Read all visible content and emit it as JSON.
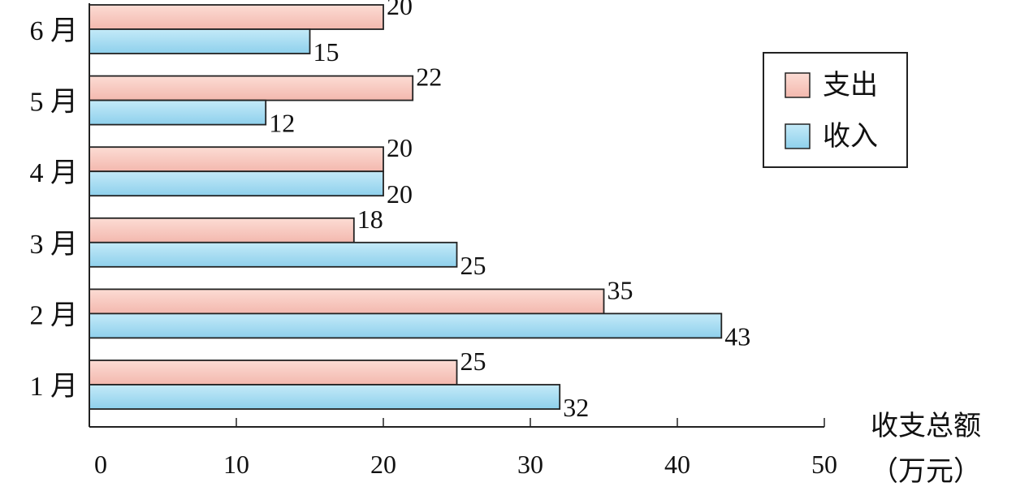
{
  "chart_data": {
    "type": "bar",
    "orientation": "horizontal",
    "categories": [
      "1 月",
      "2 月",
      "3 月",
      "4 月",
      "5 月",
      "6 月"
    ],
    "series": [
      {
        "name": "支出",
        "values": [
          25,
          35,
          18,
          20,
          22,
          20
        ],
        "color": "#F8C8C0"
      },
      {
        "name": "收入",
        "values": [
          32,
          43,
          25,
          20,
          12,
          15
        ],
        "color": "#A8DCF2"
      }
    ],
    "x_ticks": [
      "0",
      "10",
      "20",
      "30",
      "40",
      "50"
    ],
    "xlim": [
      0,
      50
    ],
    "xlabel": "收支总额",
    "xunit": "（万元）",
    "grid": false,
    "legend_position": "top-right",
    "bar_stroke": "#222222"
  }
}
